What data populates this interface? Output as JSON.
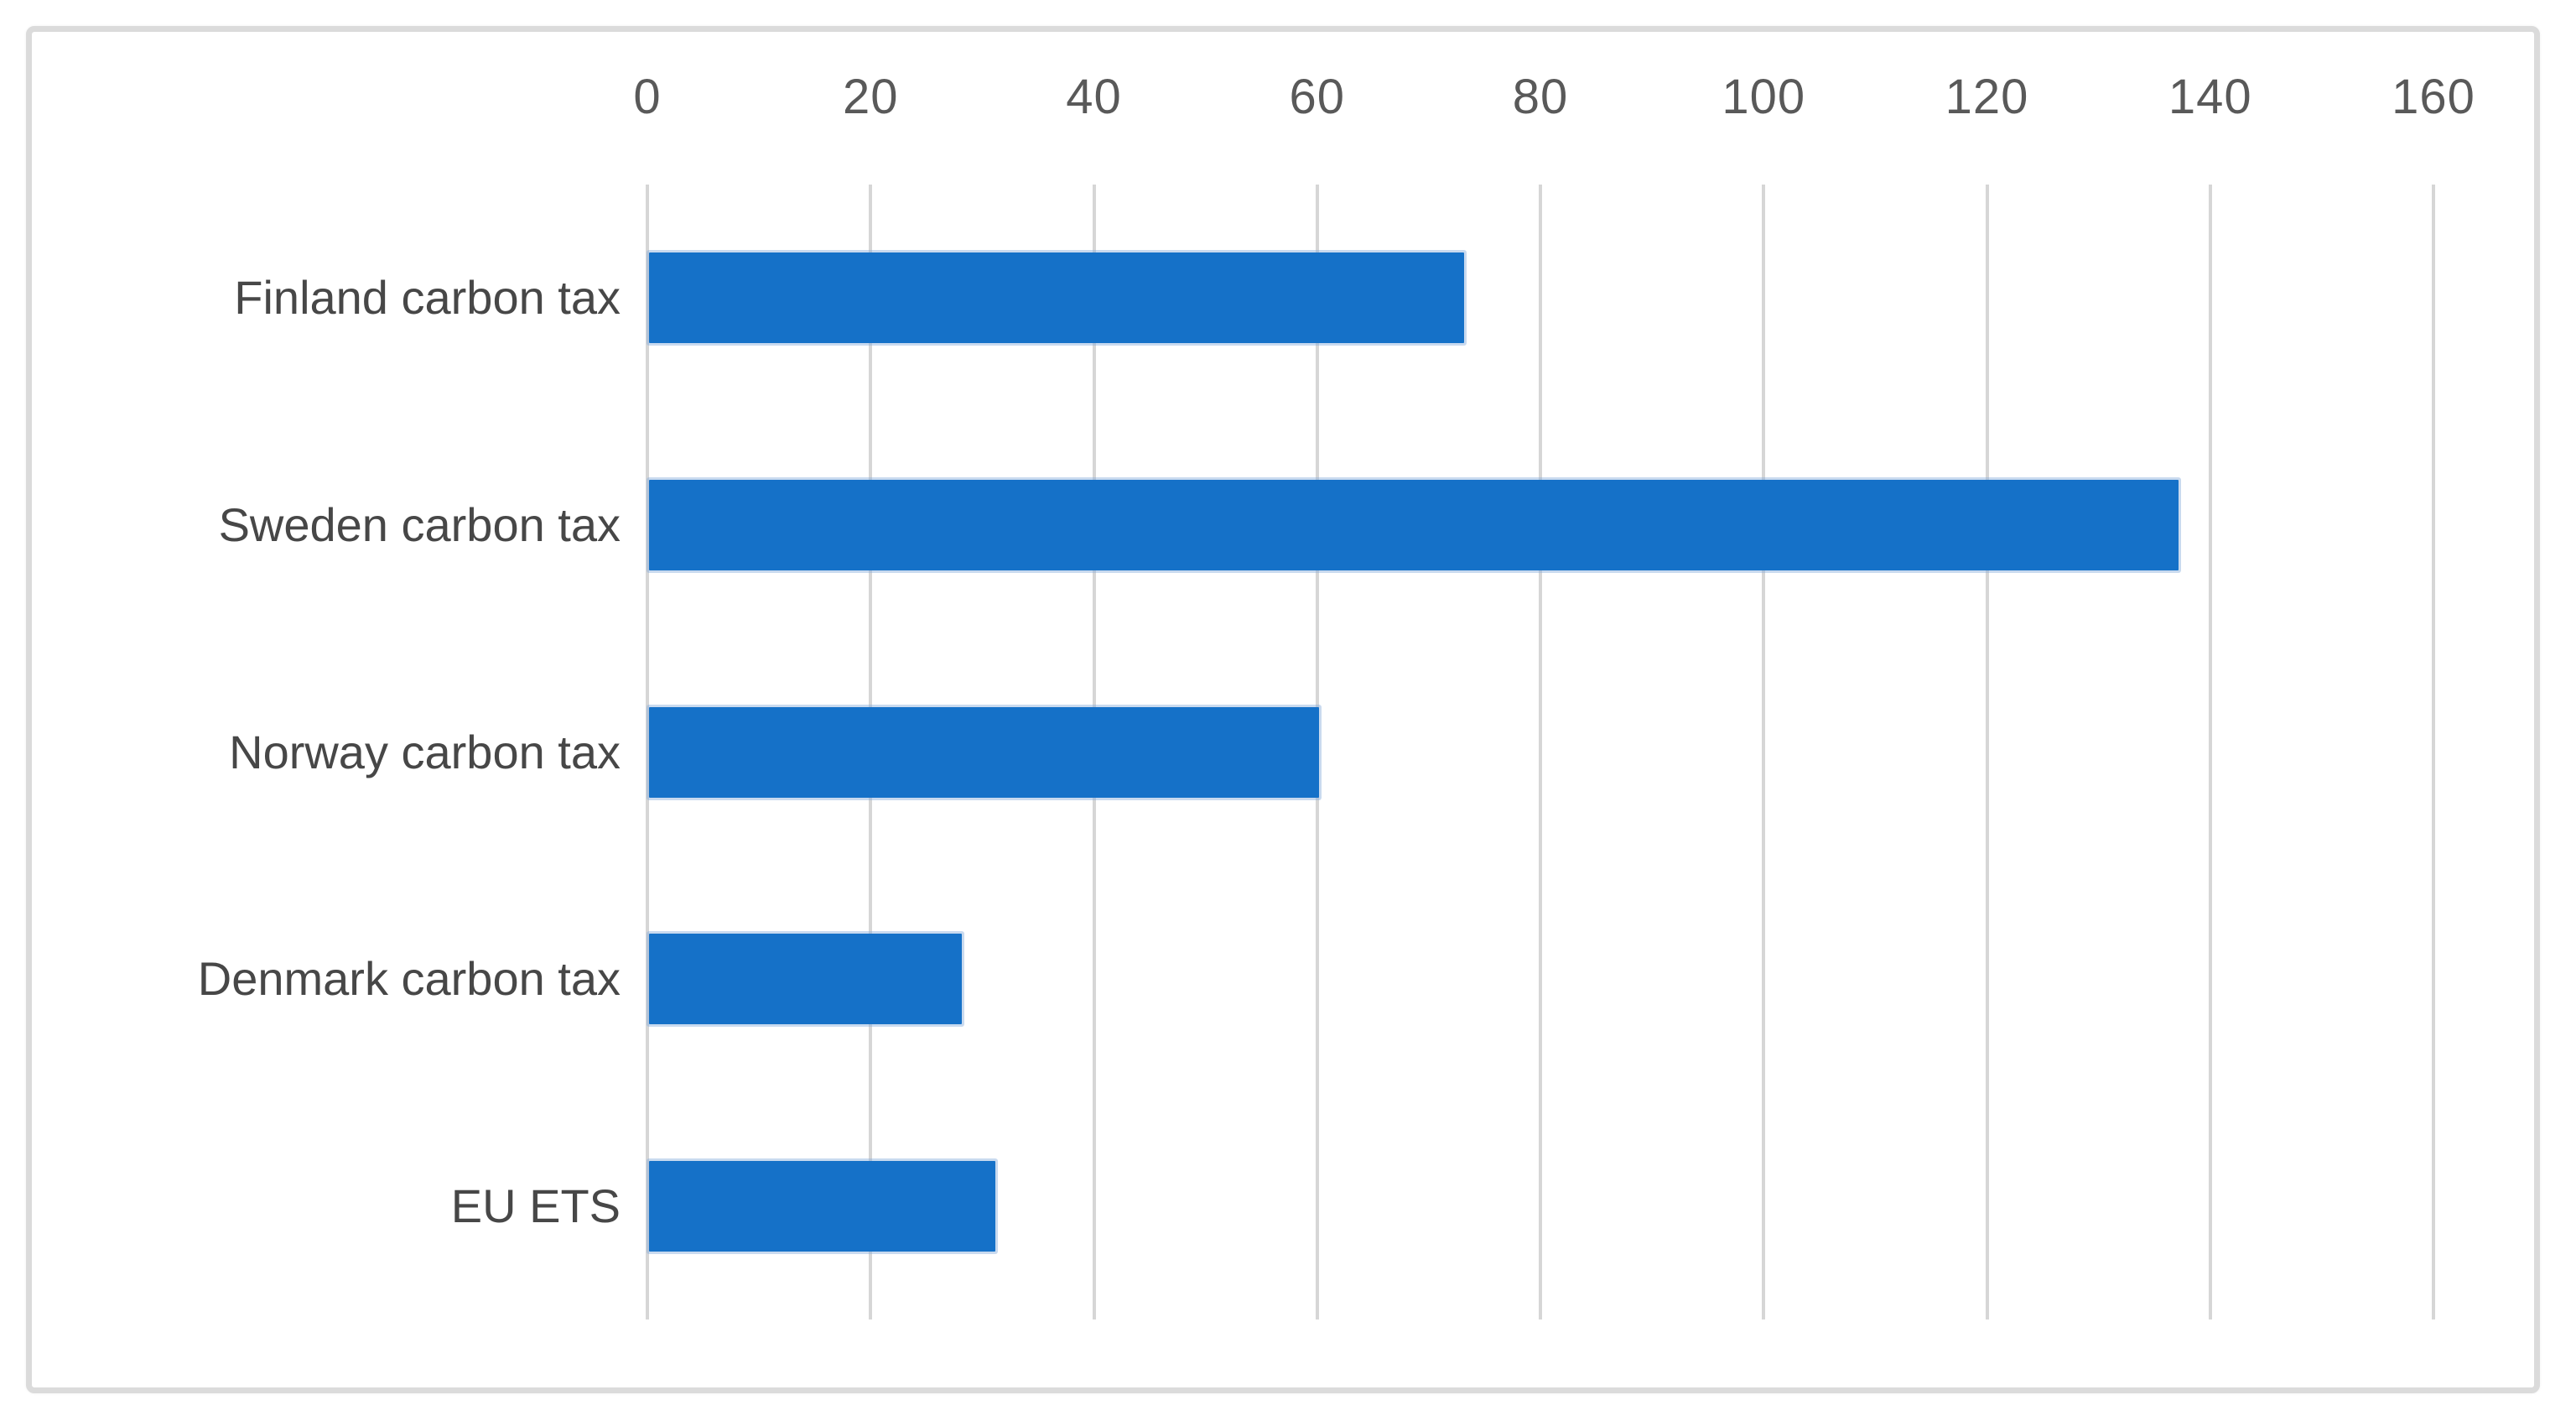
{
  "chart_data": {
    "type": "bar",
    "orientation": "horizontal",
    "title": "",
    "xlabel": "",
    "ylabel": "",
    "categories": [
      "Finland carbon tax",
      "Sweden carbon tax",
      "Norway carbon tax",
      "Denmark carbon tax",
      "EU ETS"
    ],
    "values": [
      73,
      137,
      60,
      28,
      31
    ],
    "xlim": [
      0,
      160
    ],
    "xticks": [
      0,
      20,
      40,
      60,
      80,
      100,
      120,
      140,
      160
    ],
    "grid": true,
    "legend": "none",
    "bar_color": "#1571c8",
    "gridline_color": "#d6d6d6",
    "tick_label_color": "#595959",
    "category_label_color": "#474747",
    "frame_color": "#dbdbdb"
  }
}
